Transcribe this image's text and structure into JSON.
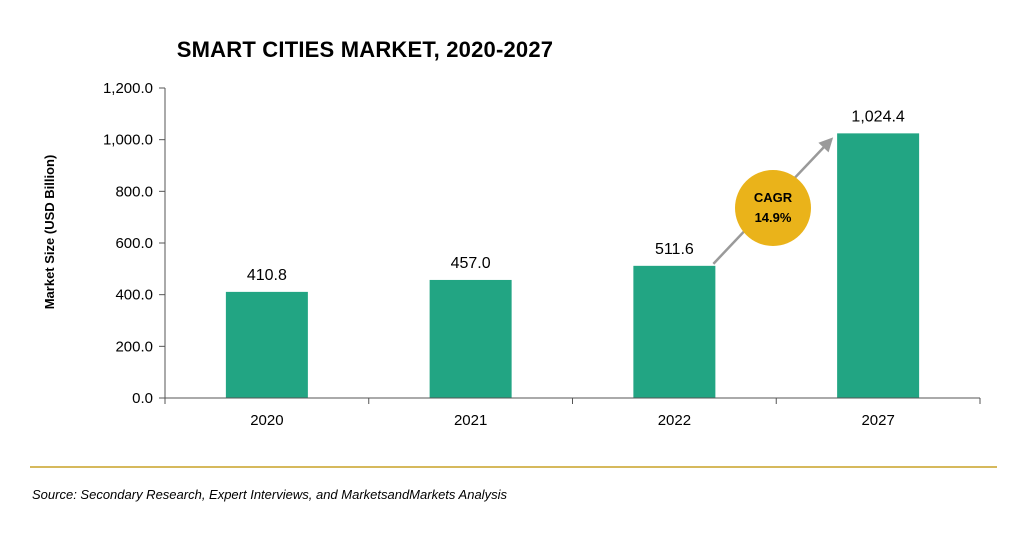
{
  "chart_data": {
    "type": "bar",
    "title": "SMART CITIES MARKET, 2020-2027",
    "xlabel": "",
    "ylabel": "Market Size (USD Billion)",
    "categories": [
      "2020",
      "2021",
      "2022",
      "2027"
    ],
    "values": [
      410.8,
      457.0,
      511.6,
      1024.4
    ],
    "value_labels": [
      "410.8",
      "457.0",
      "511.6",
      "1,024.4"
    ],
    "ylim": [
      0,
      1200
    ],
    "yticks": [
      0,
      200,
      400,
      600,
      800,
      1000,
      1200
    ],
    "ytick_labels": [
      "0.0",
      "200.0",
      "400.0",
      "600.0",
      "800.0",
      "1,000.0",
      "1,200.0"
    ],
    "grid": false,
    "annotation": {
      "line1": "CAGR",
      "line2": "14.9%"
    }
  },
  "footer": {
    "source": "Source: Secondary Research, Expert Interviews, and MarketsandMarkets Analysis"
  },
  "colors": {
    "bar": "#22a583",
    "cagr_badge": "#eab31a",
    "arrow": "#9a9a9a",
    "rule": "#c9a227"
  }
}
